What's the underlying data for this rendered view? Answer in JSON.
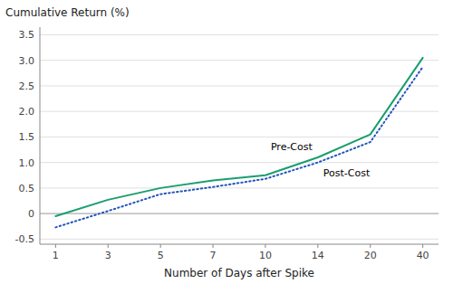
{
  "chart_data": {
    "type": "line",
    "x_label": "Number of Days after Spike",
    "y_label": "Cumulative Return (%)",
    "categories": [
      "1",
      "3",
      "5",
      "7",
      "10",
      "14",
      "20",
      "40"
    ],
    "series": [
      {
        "name": "Pre-Cost",
        "color": "#1a9e6e",
        "line_style": "solid",
        "values": [
          -0.05,
          0.27,
          0.5,
          0.65,
          0.75,
          1.1,
          1.55,
          3.05
        ]
      },
      {
        "name": "Post-Cost",
        "color": "#2255bb",
        "line_style": "dotted",
        "values": [
          -0.27,
          0.05,
          0.38,
          0.52,
          0.68,
          1.0,
          1.4,
          2.87
        ]
      }
    ],
    "ylim": [
      -0.6,
      3.65
    ],
    "yticks": [
      -0.5,
      0,
      0.5,
      {
        "value": 1.0,
        "label": "1.0"
      },
      1.5,
      {
        "value": 2.0,
        "label": "2.0"
      },
      2.5,
      {
        "value": 3.0,
        "label": "3.0"
      },
      3.5
    ],
    "grid": true
  }
}
